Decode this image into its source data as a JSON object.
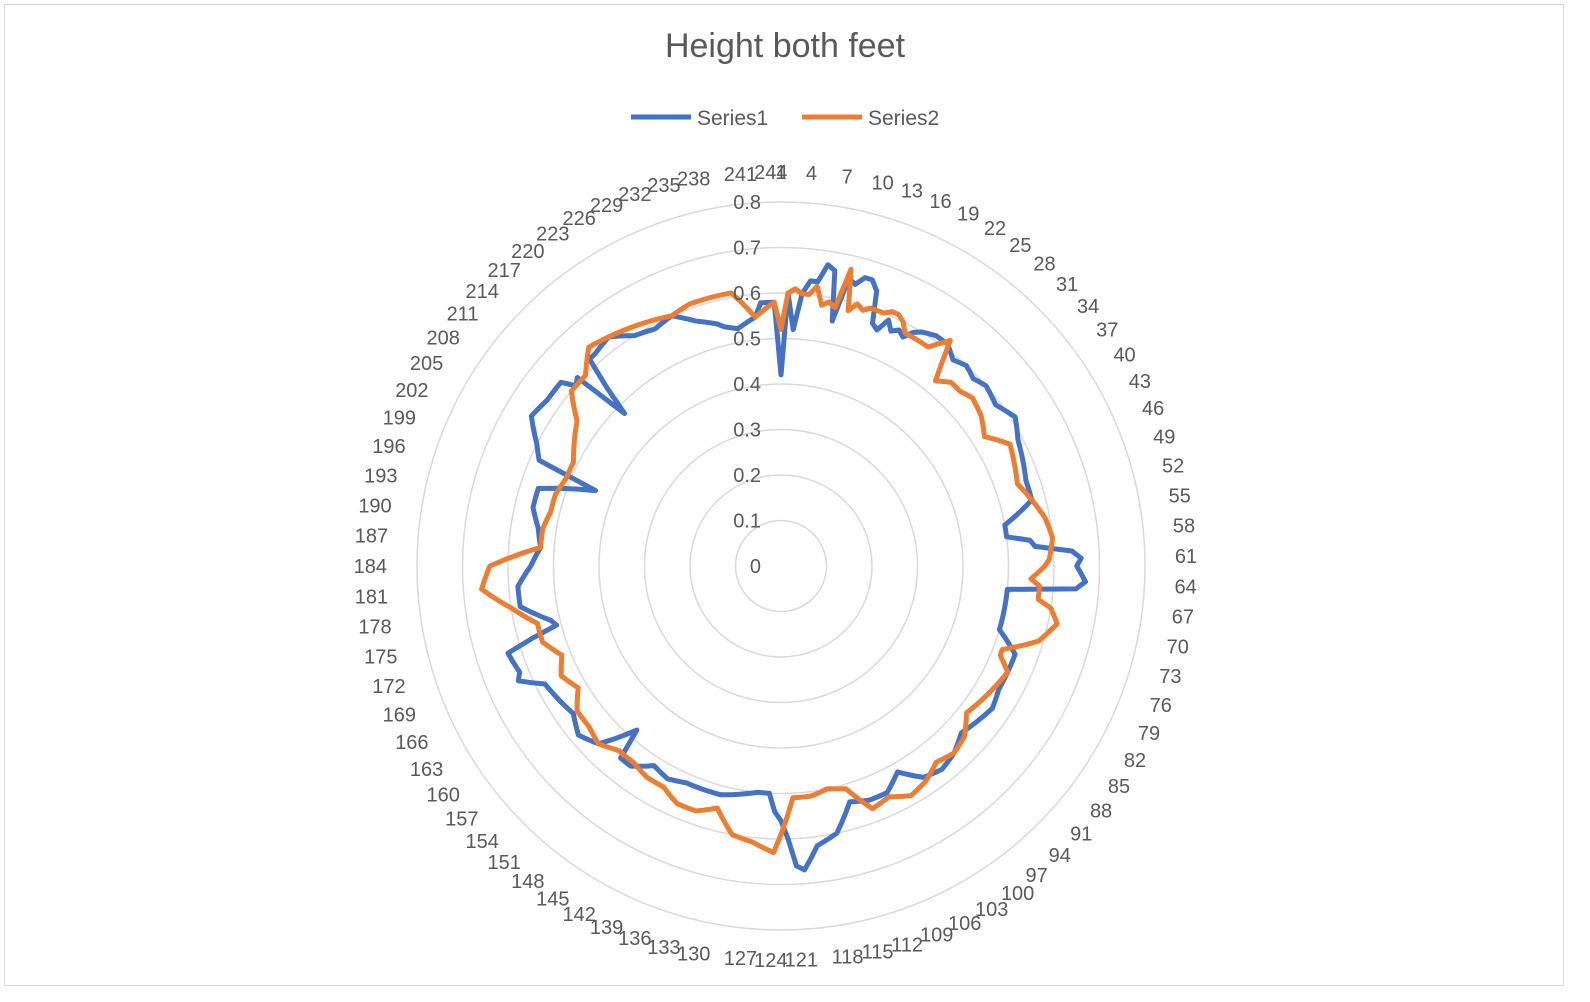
{
  "chart_data": {
    "type": "radar",
    "title": "Height both feet",
    "legend_position": "top",
    "radial_axis": {
      "min": 0,
      "max": 0.8,
      "ticks": [
        "0",
        "0.1",
        "0.2",
        "0.3",
        "0.4",
        "0.5",
        "0.6",
        "0.7",
        "0.8"
      ]
    },
    "category_count": 244,
    "category_label_step": 3,
    "gridlines": true,
    "series": [
      {
        "name": "Series1",
        "color": "#4472C4",
        "anchors": [
          [
            1,
            0.42
          ],
          [
            2,
            0.6
          ],
          [
            3,
            0.52
          ],
          [
            4,
            0.6
          ],
          [
            5,
            0.63
          ],
          [
            6,
            0.63
          ],
          [
            7,
            0.67
          ],
          [
            8,
            0.66
          ],
          [
            9,
            0.55
          ],
          [
            10,
            0.65
          ],
          [
            11,
            0.64
          ],
          [
            12,
            0.66
          ],
          [
            13,
            0.66
          ],
          [
            14,
            0.64
          ],
          [
            15,
            0.57
          ],
          [
            16,
            0.56
          ],
          [
            17,
            0.59
          ],
          [
            18,
            0.57
          ],
          [
            19,
            0.58
          ],
          [
            20,
            0.57
          ],
          [
            21,
            0.59
          ],
          [
            22,
            0.6
          ],
          [
            24,
            0.61
          ],
          [
            26,
            0.61
          ],
          [
            28,
            0.59
          ],
          [
            30,
            0.6
          ],
          [
            32,
            0.59
          ],
          [
            34,
            0.6
          ],
          [
            37,
            0.59
          ],
          [
            40,
            0.61
          ],
          [
            43,
            0.59
          ],
          [
            46,
            0.58
          ],
          [
            49,
            0.57
          ],
          [
            52,
            0.57
          ],
          [
            55,
            0.5
          ],
          [
            57,
            0.5
          ],
          [
            58,
            0.55
          ],
          [
            59,
            0.56
          ],
          [
            60,
            0.64
          ],
          [
            61,
            0.66
          ],
          [
            62,
            0.65
          ],
          [
            63,
            0.66
          ],
          [
            64,
            0.67
          ],
          [
            65,
            0.65
          ],
          [
            66,
            0.5
          ],
          [
            67,
            0.5
          ],
          [
            68,
            0.5
          ],
          [
            69,
            0.5
          ],
          [
            70,
            0.5
          ],
          [
            73,
            0.5
          ],
          [
            76,
            0.55
          ],
          [
            79,
            0.55
          ],
          [
            82,
            0.55
          ],
          [
            85,
            0.56
          ],
          [
            88,
            0.55
          ],
          [
            91,
            0.54
          ],
          [
            94,
            0.56
          ],
          [
            97,
            0.57
          ],
          [
            100,
            0.56
          ],
          [
            103,
            0.52
          ],
          [
            104,
            0.53
          ],
          [
            106,
            0.55
          ],
          [
            109,
            0.55
          ],
          [
            112,
            0.54
          ],
          [
            115,
            0.6
          ],
          [
            118,
            0.62
          ],
          [
            120,
            0.67
          ],
          [
            121,
            0.66
          ],
          [
            122,
            0.6
          ],
          [
            123,
            0.56
          ],
          [
            124,
            0.54
          ],
          [
            125,
            0.5
          ],
          [
            127,
            0.5
          ],
          [
            130,
            0.51
          ],
          [
            133,
            0.52
          ],
          [
            136,
            0.52
          ],
          [
            139,
            0.52
          ],
          [
            142,
            0.53
          ],
          [
            145,
            0.52
          ],
          [
            148,
            0.55
          ],
          [
            150,
            0.55
          ],
          [
            151,
            0.48
          ],
          [
            154,
            0.56
          ],
          [
            157,
            0.58
          ],
          [
            160,
            0.56
          ],
          [
            163,
            0.57
          ],
          [
            166,
            0.58
          ],
          [
            168,
            0.63
          ],
          [
            169,
            0.62
          ],
          [
            172,
            0.63
          ],
          [
            174,
            0.51
          ],
          [
            175,
            0.52
          ],
          [
            178,
            0.58
          ],
          [
            181,
            0.58
          ],
          [
            184,
            0.55
          ],
          [
            187,
            0.53
          ],
          [
            190,
            0.54
          ],
          [
            193,
            0.56
          ],
          [
            196,
            0.56
          ],
          [
            197,
            0.52
          ],
          [
            199,
            0.44
          ],
          [
            200,
            0.58
          ],
          [
            202,
            0.6
          ],
          [
            205,
            0.64
          ],
          [
            208,
            0.63
          ],
          [
            211,
            0.63
          ],
          [
            212,
            0.6
          ],
          [
            213,
            0.61
          ],
          [
            214,
            0.48
          ],
          [
            216,
            0.62
          ],
          [
            217,
            0.62
          ],
          [
            220,
            0.63
          ],
          [
            223,
            0.6
          ],
          [
            226,
            0.59
          ],
          [
            229,
            0.6
          ],
          [
            232,
            0.57
          ],
          [
            235,
            0.55
          ],
          [
            236,
            0.54
          ],
          [
            238,
            0.53
          ],
          [
            241,
            0.55
          ],
          [
            242,
            0.58
          ],
          [
            243,
            0.58
          ],
          [
            244,
            0.58
          ]
        ]
      },
      {
        "name": "Series2",
        "color": "#ED7D31",
        "anchors": [
          [
            1,
            0.52
          ],
          [
            2,
            0.6
          ],
          [
            3,
            0.61
          ],
          [
            4,
            0.6
          ],
          [
            5,
            0.6
          ],
          [
            6,
            0.62
          ],
          [
            7,
            0.58
          ],
          [
            8,
            0.59
          ],
          [
            9,
            0.58
          ],
          [
            10,
            0.67
          ],
          [
            11,
            0.58
          ],
          [
            12,
            0.6
          ],
          [
            13,
            0.59
          ],
          [
            14,
            0.6
          ],
          [
            15,
            0.6
          ],
          [
            16,
            0.6
          ],
          [
            17,
            0.61
          ],
          [
            18,
            0.61
          ],
          [
            19,
            0.6
          ],
          [
            20,
            0.58
          ],
          [
            22,
            0.58
          ],
          [
            24,
            0.58
          ],
          [
            25,
            0.6
          ],
          [
            26,
            0.62
          ],
          [
            27,
            0.57
          ],
          [
            28,
            0.53
          ],
          [
            30,
            0.55
          ],
          [
            32,
            0.55
          ],
          [
            34,
            0.56
          ],
          [
            37,
            0.55
          ],
          [
            40,
            0.53
          ],
          [
            43,
            0.57
          ],
          [
            46,
            0.56
          ],
          [
            49,
            0.55
          ],
          [
            52,
            0.57
          ],
          [
            55,
            0.59
          ],
          [
            58,
            0.6
          ],
          [
            61,
            0.59
          ],
          [
            62,
            0.58
          ],
          [
            64,
            0.55
          ],
          [
            65,
            0.57
          ],
          [
            67,
            0.57
          ],
          [
            68,
            0.6
          ],
          [
            70,
            0.62
          ],
          [
            73,
            0.59
          ],
          [
            76,
            0.52
          ],
          [
            77,
            0.52
          ],
          [
            79,
            0.55
          ],
          [
            82,
            0.54
          ],
          [
            85,
            0.53
          ],
          [
            88,
            0.52
          ],
          [
            91,
            0.55
          ],
          [
            94,
            0.56
          ],
          [
            97,
            0.55
          ],
          [
            100,
            0.57
          ],
          [
            103,
            0.58
          ],
          [
            106,
            0.56
          ],
          [
            109,
            0.57
          ],
          [
            112,
            0.51
          ],
          [
            115,
            0.5
          ],
          [
            118,
            0.51
          ],
          [
            121,
            0.51
          ],
          [
            124,
            0.63
          ],
          [
            127,
            0.61
          ],
          [
            130,
            0.6
          ],
          [
            133,
            0.55
          ],
          [
            136,
            0.57
          ],
          [
            139,
            0.57
          ],
          [
            142,
            0.55
          ],
          [
            145,
            0.55
          ],
          [
            148,
            0.54
          ],
          [
            151,
            0.54
          ],
          [
            154,
            0.56
          ],
          [
            157,
            0.55
          ],
          [
            160,
            0.55
          ],
          [
            163,
            0.52
          ],
          [
            166,
            0.54
          ],
          [
            169,
            0.52
          ],
          [
            172,
            0.55
          ],
          [
            175,
            0.55
          ],
          [
            178,
            0.6
          ],
          [
            181,
            0.66
          ],
          [
            184,
            0.64
          ],
          [
            187,
            0.53
          ],
          [
            190,
            0.53
          ],
          [
            193,
            0.52
          ],
          [
            196,
            0.52
          ],
          [
            199,
            0.51
          ],
          [
            202,
            0.51
          ],
          [
            205,
            0.53
          ],
          [
            208,
            0.55
          ],
          [
            211,
            0.6
          ],
          [
            214,
            0.6
          ],
          [
            217,
            0.64
          ],
          [
            220,
            0.63
          ],
          [
            223,
            0.62
          ],
          [
            226,
            0.61
          ],
          [
            229,
            0.6
          ],
          [
            232,
            0.61
          ],
          [
            235,
            0.61
          ],
          [
            238,
            0.61
          ],
          [
            241,
            0.55
          ],
          [
            242,
            0.56
          ],
          [
            244,
            0.58
          ]
        ]
      }
    ]
  }
}
